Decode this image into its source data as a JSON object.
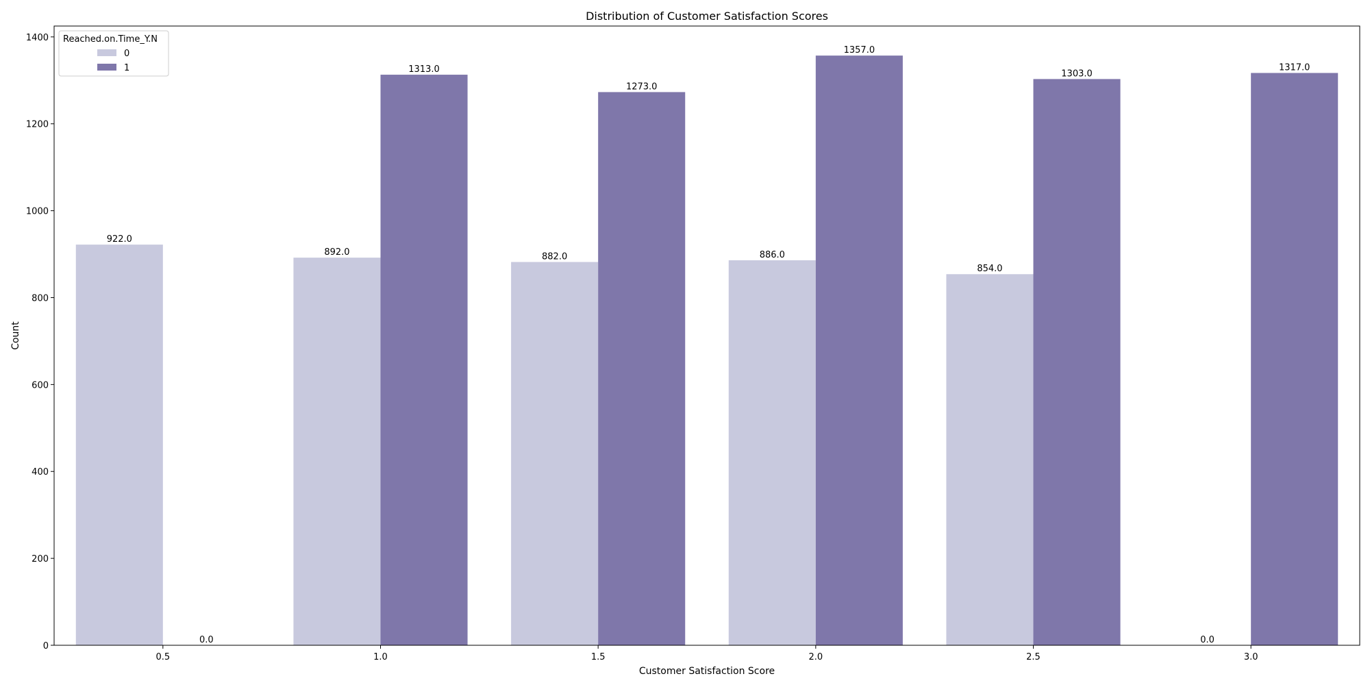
{
  "chart_data": {
    "type": "bar",
    "title": "Distribution of Customer Satisfaction Scores",
    "xlabel": "Customer Satisfaction Score",
    "ylabel": "Count",
    "categories": [
      "0.5",
      "1.0",
      "1.5",
      "2.0",
      "2.5",
      "3.0"
    ],
    "series": [
      {
        "name": "0",
        "color": "#c8c9de",
        "values": [
          922,
          892,
          882,
          886,
          854,
          0
        ],
        "labels": [
          "922.0",
          "892.0",
          "882.0",
          "886.0",
          "854.0",
          "0.0"
        ]
      },
      {
        "name": "1",
        "color": "#7f77aa",
        "values": [
          0,
          1313,
          1273,
          1357,
          1303,
          1317
        ],
        "labels": [
          "0.0",
          "1313.0",
          "1273.0",
          "1357.0",
          "1303.0",
          "1317.0"
        ]
      }
    ],
    "ylim": [
      0,
      1425
    ],
    "yticks": [
      0,
      200,
      400,
      600,
      800,
      1000,
      1200,
      1400
    ],
    "ytick_labels": [
      "0",
      "200",
      "400",
      "600",
      "800",
      "1000",
      "1200",
      "1400"
    ],
    "legend": {
      "title": "Reached.on.Time_Y.N",
      "position": "top-left"
    },
    "grid": false
  }
}
